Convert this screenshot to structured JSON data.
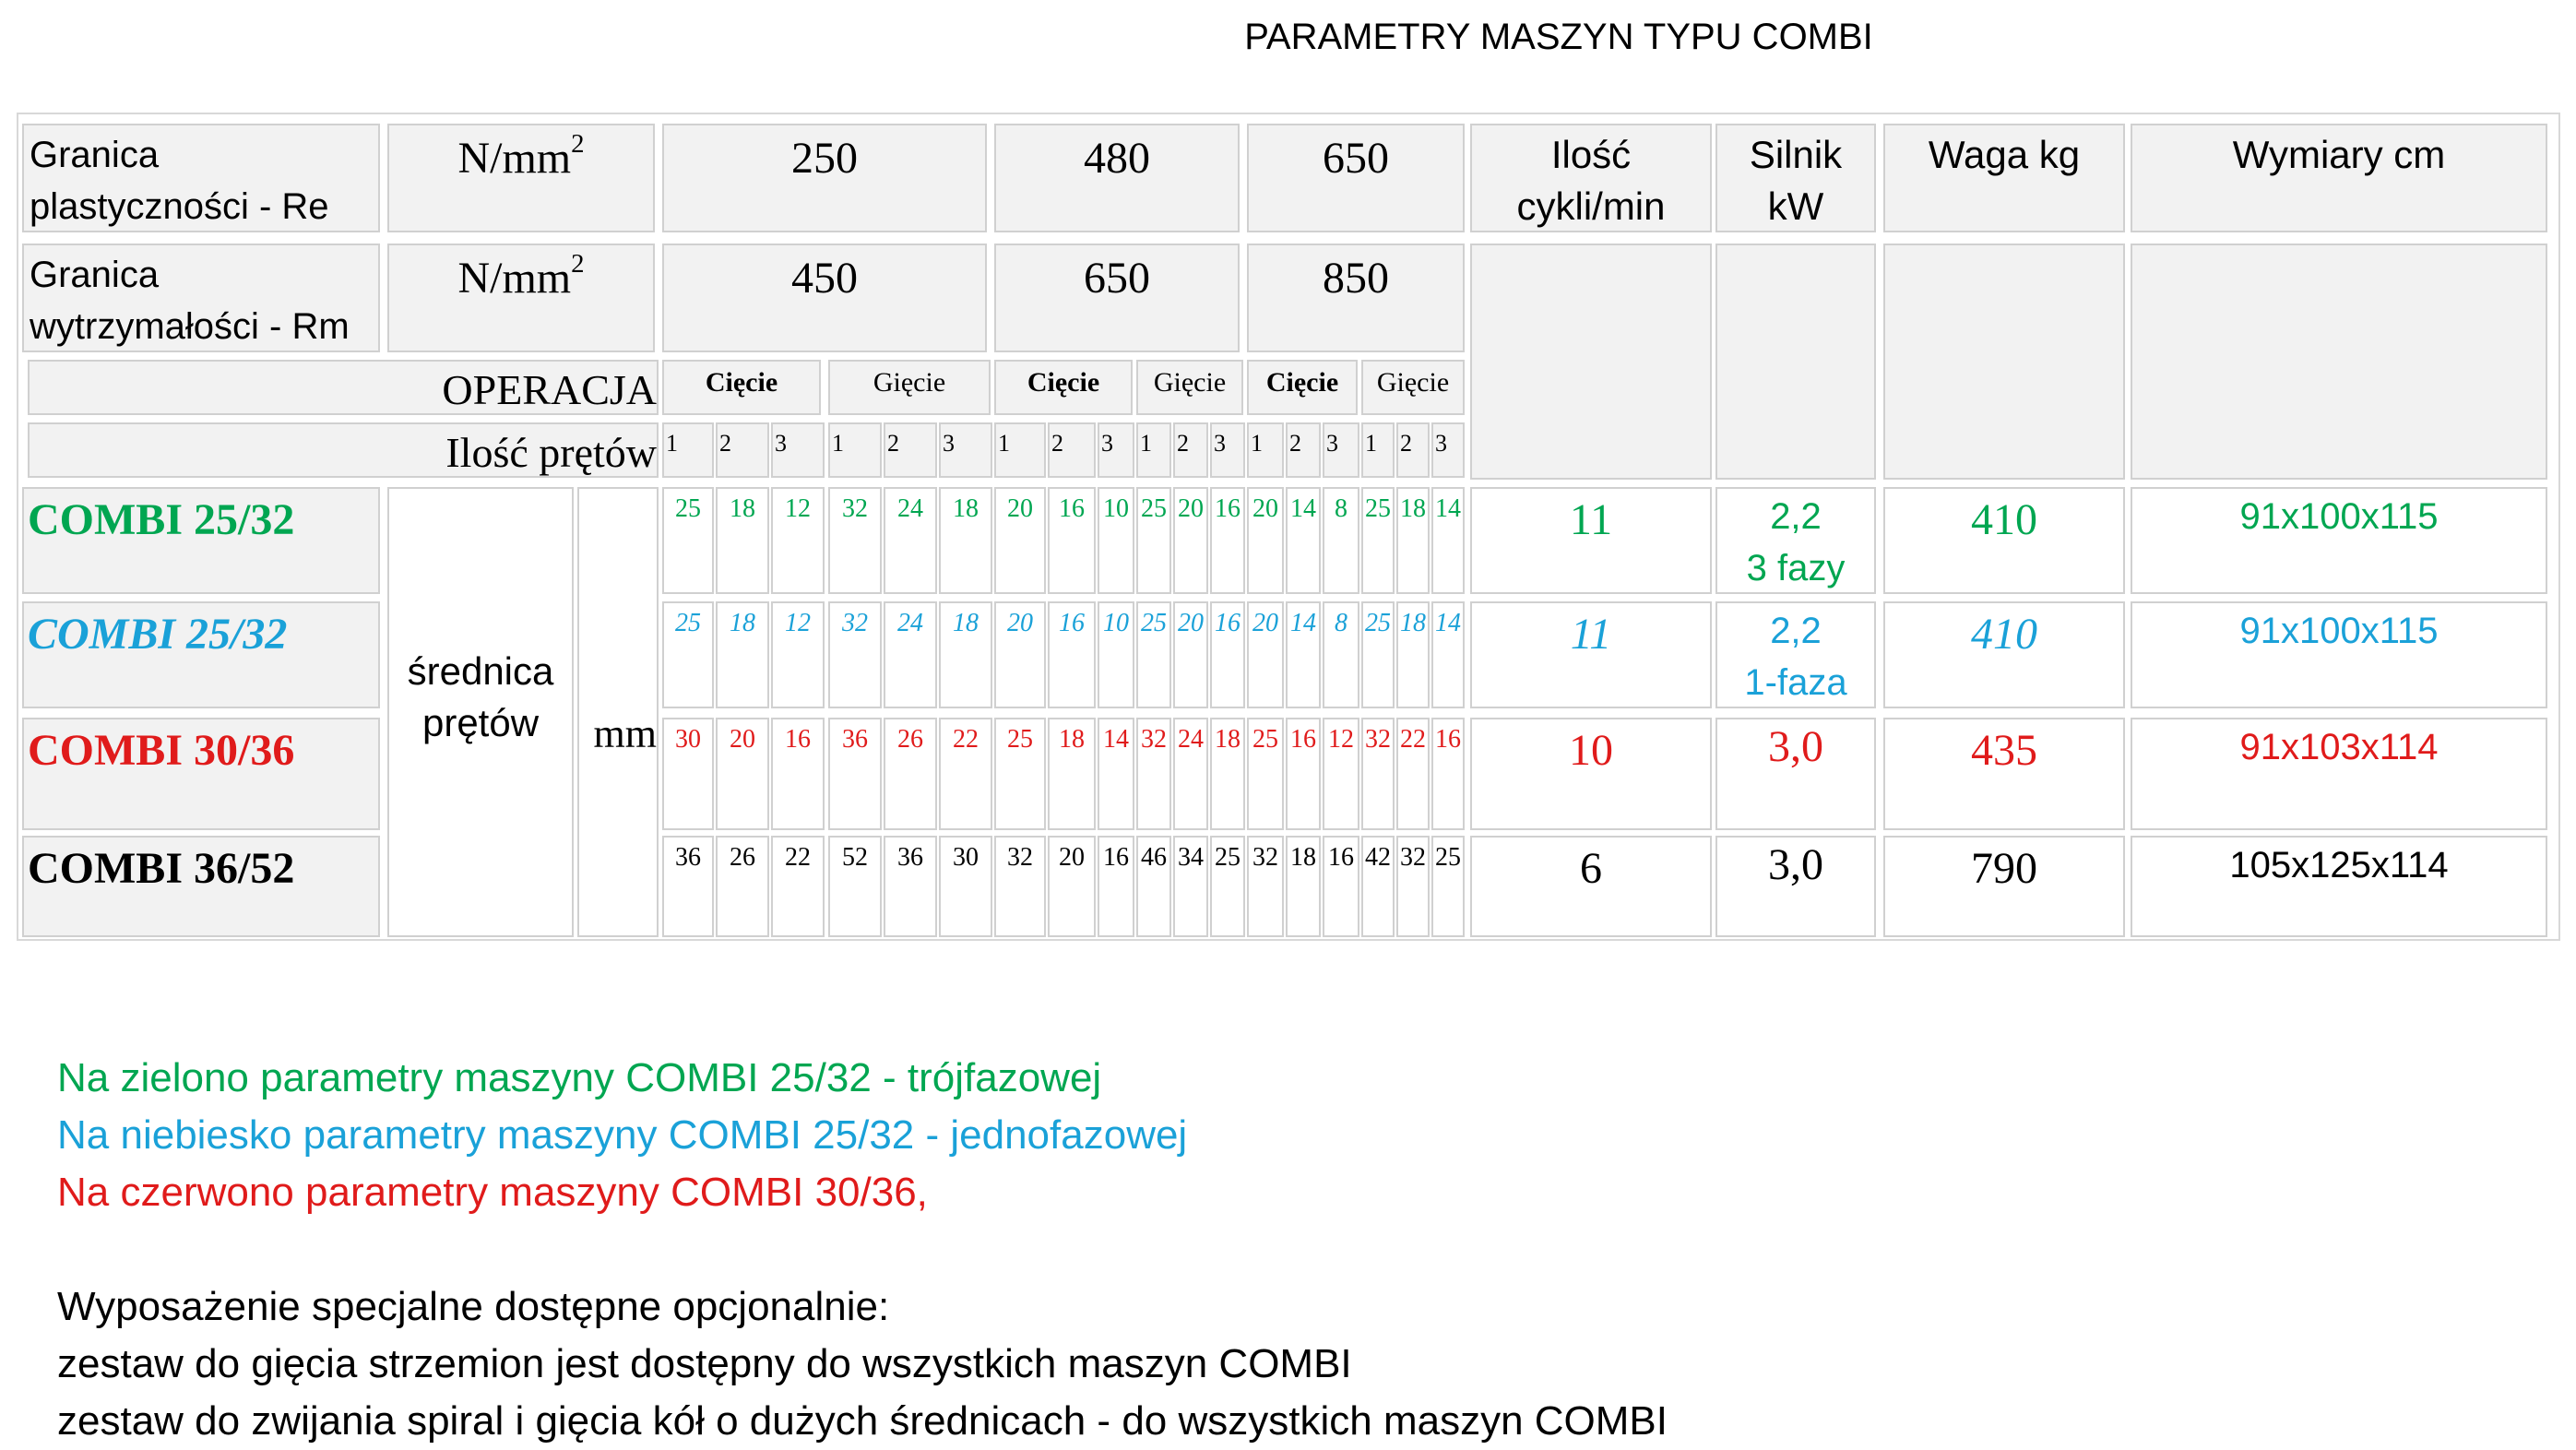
{
  "title": "PARAMETRY MASZYN TYPU COMBI",
  "header": {
    "re_label": "Granica plastyczności - Re",
    "rm_label": "Granica wytrzymałości - Rm",
    "unit_base": "N/mm",
    "unit_sup": "2",
    "re_values": [
      "250",
      "480",
      "650"
    ],
    "rm_values": [
      "450",
      "650",
      "850"
    ],
    "cycles": "Ilość cykli/min",
    "motor": "Silnik kW",
    "weight": "Waga kg",
    "dims": "Wymiary cm",
    "operation_label": "OPERACJA",
    "bars_count_label": "Ilość prętów",
    "operations": [
      "Cięcie",
      "Gięcie",
      "Cięcie",
      "Gięcie",
      "Cięcie",
      "Gięcie"
    ],
    "bar_counts": [
      "1",
      "2",
      "3",
      "1",
      "2",
      "3",
      "1",
      "2",
      "3",
      "1",
      "2",
      "3",
      "1",
      "2",
      "3",
      "1",
      "2",
      "3"
    ],
    "diameter_label": "średnica prętów",
    "mm_label": "mm"
  },
  "rows": [
    {
      "model": "COMBI 25/32",
      "color": "#00a651",
      "italic": false,
      "values": [
        "25",
        "18",
        "12",
        "32",
        "24",
        "18",
        "20",
        "16",
        "10",
        "25",
        "20",
        "16",
        "20",
        "14",
        "8",
        "25",
        "18",
        "14"
      ],
      "cycles": "11",
      "motor_kw": "2,2",
      "motor_phase": "3 fazy",
      "weight": "410",
      "dims": "91x100x115"
    },
    {
      "model": "COMBI 25/32",
      "color": "#1aa1d8",
      "italic": true,
      "values": [
        "25",
        "18",
        "12",
        "32",
        "24",
        "18",
        "20",
        "16",
        "10",
        "25",
        "20",
        "16",
        "20",
        "14",
        "8",
        "25",
        "18",
        "14"
      ],
      "cycles": "11",
      "motor_kw": "2,2",
      "motor_phase": "1-faza",
      "weight": "410",
      "dims": "91x100x115"
    },
    {
      "model": "COMBI 30/36",
      "color": "#e01b1b",
      "italic": false,
      "values": [
        "30",
        "20",
        "16",
        "36",
        "26",
        "22",
        "25",
        "18",
        "14",
        "32",
        "24",
        "18",
        "25",
        "16",
        "12",
        "32",
        "22",
        "16"
      ],
      "cycles": "10",
      "motor_kw": "3,0",
      "motor_phase": "",
      "weight": "435",
      "dims": "91x103x114"
    },
    {
      "model": "COMBI 36/52",
      "color": "#000000",
      "italic": false,
      "values": [
        "36",
        "26",
        "22",
        "52",
        "36",
        "30",
        "32",
        "20",
        "16",
        "46",
        "34",
        "25",
        "32",
        "18",
        "16",
        "42",
        "32",
        "25"
      ],
      "cycles": "6",
      "motor_kw": "3,0",
      "motor_phase": "",
      "weight": "790",
      "dims": "105x125x114"
    }
  ],
  "notes": {
    "green": "Na zielono parametry maszyny COMBI 25/32 - trójfazowej",
    "blue": "Na niebiesko parametry maszyny COMBI 25/32 - jednofazowej",
    "red": "Na czerwono parametry maszyny COMBI 30/36,",
    "equipment_heading": "Wyposażenie specjalne dostępne opcjonalnie:",
    "equipment_1": "zestaw do gięcia strzemion jest dostępny do wszystkich maszyn COMBI",
    "equipment_2": "zestaw do zwijania spiral i gięcia kół o dużych średnicach - do wszystkich maszyn COMBI"
  }
}
